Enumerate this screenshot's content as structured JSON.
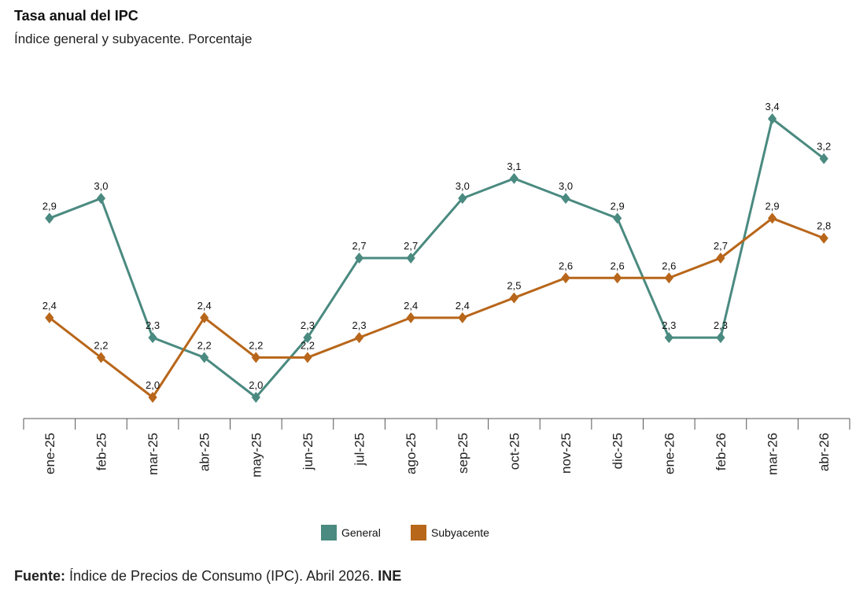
{
  "chart_data": {
    "type": "line",
    "title": "Tasa anual del IPC",
    "subtitle": "Índice general y subyacente. Porcentaje",
    "categories": [
      "ene-25",
      "feb-25",
      "mar-25",
      "abr-25",
      "may-25",
      "jun-25",
      "jul-25",
      "ago-25",
      "sep-25",
      "oct-25",
      "nov-25",
      "dic-25",
      "ene-26",
      "feb-26",
      "mar-26",
      "abr-26"
    ],
    "series": [
      {
        "name": "General",
        "color": "#4a8a80",
        "values": [
          2.9,
          3.0,
          2.3,
          2.2,
          2.0,
          2.3,
          2.7,
          2.7,
          3.0,
          3.1,
          3.0,
          2.9,
          2.3,
          2.3,
          3.4,
          3.2
        ],
        "labels": [
          "2,9",
          "3,0",
          "2,3",
          "2,2",
          "2,0",
          "2,3",
          "2,7",
          "2,7",
          "3,0",
          "3,1",
          "3,0",
          "2,9",
          "2,3",
          "2,3",
          "3,4",
          "3,2"
        ]
      },
      {
        "name": "Subyacente",
        "color": "#b8661a",
        "values": [
          2.4,
          2.2,
          2.0,
          2.4,
          2.2,
          2.2,
          2.3,
          2.4,
          2.4,
          2.5,
          2.6,
          2.6,
          2.6,
          2.7,
          2.9,
          2.8
        ],
        "labels": [
          "2,4",
          "2,2",
          "2,0",
          "2,4",
          "2,2",
          "2,2",
          "2,3",
          "2,4",
          "2,4",
          "2,5",
          "2,6",
          "2,6",
          "2,6",
          "2,7",
          "2,9",
          "2,8"
        ]
      }
    ],
    "ylim": [
      2.0,
      3.4
    ],
    "grid": false,
    "legend": "bottom"
  },
  "footer": {
    "label": "Fuente:",
    "text": " Índice de Precios de Consumo (IPC). Abril 2026. ",
    "source": "INE"
  }
}
